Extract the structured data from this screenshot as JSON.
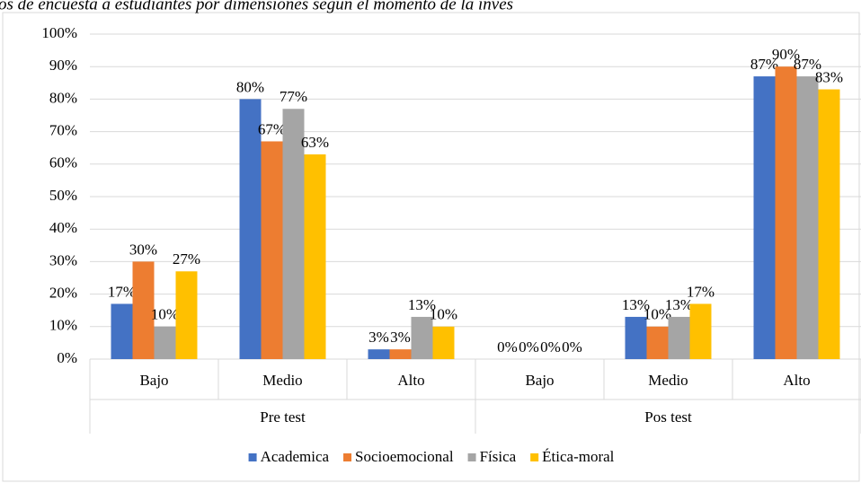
{
  "chart_data": {
    "type": "bar",
    "title": "os de encuesta a estudiantes por dimensiones según el momento de la inves",
    "groups": [
      {
        "label": "Pre test",
        "categories": [
          "Bajo",
          "Medio",
          "Alto"
        ]
      },
      {
        "label": "Pos test",
        "categories": [
          "Bajo",
          "Medio",
          "Alto"
        ]
      }
    ],
    "series": [
      {
        "name": "Academica",
        "color": "#4472c4",
        "values": [
          17,
          80,
          3,
          0,
          13,
          87
        ],
        "value_labels": [
          "17%",
          "80%",
          "3%",
          "0%",
          "13%",
          "87%"
        ]
      },
      {
        "name": "Socioemocional",
        "color": "#ed7d31",
        "values": [
          30,
          67,
          3,
          0,
          10,
          90
        ],
        "value_labels": [
          "30%",
          "67%",
          "3%",
          "0%",
          "10%",
          "90%"
        ]
      },
      {
        "name": "Física",
        "color": "#a5a5a5",
        "values": [
          10,
          77,
          13,
          0,
          13,
          87
        ],
        "value_labels": [
          "10%",
          "77%",
          "13%",
          "0%",
          "13%",
          "87%"
        ]
      },
      {
        "name": "Ética-moral",
        "color": "#ffc000",
        "values": [
          27,
          63,
          10,
          0,
          17,
          83
        ],
        "value_labels": [
          "27%",
          "63%",
          "10%",
          "0%",
          "17%",
          "83%"
        ]
      }
    ],
    "ylim": [
      0,
      100
    ],
    "yticks": [
      {
        "value": 0,
        "label": "0%"
      },
      {
        "value": 10,
        "label": "10%"
      },
      {
        "value": 20,
        "label": "20%"
      },
      {
        "value": 30,
        "label": "30%"
      },
      {
        "value": 40,
        "label": "40%"
      },
      {
        "value": 50,
        "label": "50%"
      },
      {
        "value": 60,
        "label": "60%"
      },
      {
        "value": 70,
        "label": "70%"
      },
      {
        "value": 80,
        "label": "80%"
      },
      {
        "value": 90,
        "label": "90%"
      },
      {
        "value": 100,
        "label": "100%"
      }
    ],
    "grid": true,
    "legend": "bottom"
  }
}
